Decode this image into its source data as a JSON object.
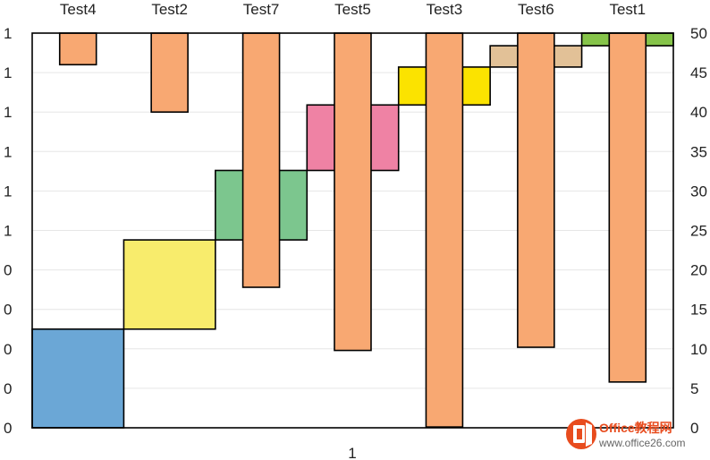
{
  "chart_data": {
    "type": "bar",
    "subtype": "waterfall-with-inverted-bars",
    "category_label": "1",
    "left_axis": {
      "tick_labels": [
        "0",
        "0",
        "0",
        "0",
        "0",
        "1",
        "1",
        "1",
        "1",
        "1",
        "1"
      ]
    },
    "right_axis": {
      "ylim": [
        0,
        50
      ],
      "ticks": [
        0,
        5,
        10,
        15,
        20,
        25,
        30,
        35,
        40,
        45,
        50
      ]
    },
    "grid": true,
    "tests": [
      {
        "name": "Test4",
        "start": 0,
        "end": 12.5,
        "color": "#6ba7d6",
        "bar_from_top": 4
      },
      {
        "name": "Test2",
        "start": 12.5,
        "end": 23.8,
        "color": "#f8ec6c",
        "bar_from_top": 10
      },
      {
        "name": "Test7",
        "start": 23.8,
        "end": 32.6,
        "color": "#7cc68e",
        "bar_from_top": 32.2
      },
      {
        "name": "Test5",
        "start": 32.6,
        "end": 40.9,
        "color": "#ef82a4",
        "bar_from_top": 40.2
      },
      {
        "name": "Test3",
        "start": 40.9,
        "end": 45.7,
        "color": "#fbe300",
        "bar_from_top": 49.9
      },
      {
        "name": "Test6",
        "start": 45.7,
        "end": 48.4,
        "color": "#e2c197",
        "bar_from_top": 39.8
      },
      {
        "name": "Test1",
        "start": 48.4,
        "end": 50,
        "color": "#86c44a",
        "bar_from_top": 44.2
      }
    ],
    "overlay_bar_color": "#f8a872",
    "watermark": {
      "line1": "Office教程网",
      "line2": "www.office26.com"
    }
  }
}
